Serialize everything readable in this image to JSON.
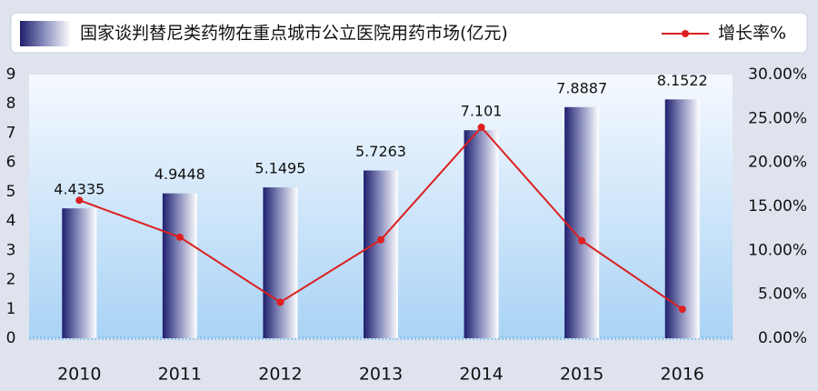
{
  "chart_data": {
    "type": "bar-line",
    "categories": [
      "2010",
      "2011",
      "2012",
      "2013",
      "2014",
      "2015",
      "2016"
    ],
    "series": [
      {
        "name": "国家谈判替尼类药物在重点城市公立医院用药市场(亿元)",
        "color": "#1f1f6e",
        "type": "bar",
        "values": [
          4.4335,
          4.9448,
          5.1495,
          5.7263,
          7.101,
          7.8887,
          8.1522
        ]
      },
      {
        "name": "增长率%",
        "color": "#dd1f1f",
        "type": "line",
        "axis": "y2",
        "values": [
          15.7,
          11.5,
          4.1,
          11.2,
          24.0,
          11.1,
          3.3
        ]
      }
    ],
    "ylim": [
      0,
      9
    ],
    "yticks": [
      0,
      1,
      2,
      3,
      4,
      5,
      6,
      7,
      8,
      9
    ],
    "y2lim": [
      0,
      30
    ],
    "y2ticks": [
      {
        "value": 0,
        "label": "0.00%"
      },
      {
        "value": 5,
        "label": "5.00%"
      },
      {
        "value": 10,
        "label": "10.00%"
      },
      {
        "value": 15,
        "label": "15.00%"
      },
      {
        "value": 20,
        "label": "20.00%"
      },
      {
        "value": 25,
        "label": "25.00%"
      },
      {
        "value": 30,
        "label": "30.00%"
      }
    ],
    "legend": "top",
    "grid": false
  }
}
